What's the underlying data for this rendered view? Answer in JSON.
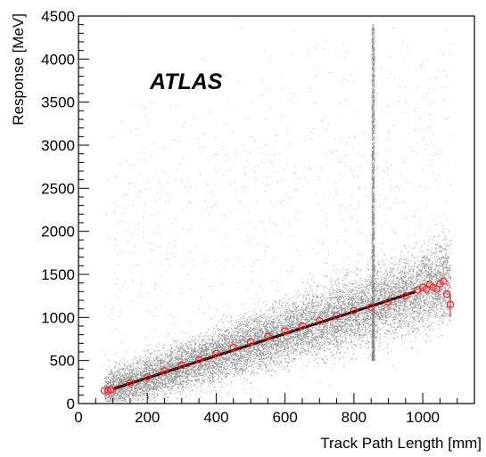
{
  "chart_data": {
    "type": "scatter",
    "title": "",
    "annotation": "ATLAS",
    "xlabel": "Track Path Length [mm]",
    "ylabel": "Response [MeV]",
    "xlim": [
      0,
      1150
    ],
    "ylim": [
      0,
      4500
    ],
    "x_ticks": [
      "0",
      "200",
      "400",
      "600",
      "800",
      "1000"
    ],
    "y_ticks": [
      "0",
      "500",
      "1000",
      "1500",
      "2000",
      "2500",
      "3000",
      "3500",
      "4000",
      "4500"
    ],
    "grid": false,
    "legend": "none",
    "colors": {
      "scatter": "#8c8c8c",
      "profile": "#ff2020",
      "fit": "#000000"
    },
    "background_scatter": {
      "description_of_density": "dense grey cloud of individual events",
      "x_range": [
        75,
        1080
      ],
      "vertical_spike_x": 855
    },
    "fit_line": {
      "x": [
        100,
        980
      ],
      "y": [
        170,
        1300
      ]
    },
    "profile_points": {
      "x": [
        75,
        85,
        95,
        150,
        200,
        250,
        300,
        350,
        400,
        450,
        500,
        550,
        600,
        650,
        700,
        750,
        800,
        850,
        900,
        950,
        985,
        1000,
        1010,
        1020,
        1030,
        1040,
        1050,
        1060,
        1070,
        1080
      ],
      "y": [
        150,
        150,
        160,
        240,
        310,
        380,
        445,
        510,
        580,
        650,
        715,
        780,
        840,
        900,
        960,
        1020,
        1080,
        1120,
        1180,
        1250,
        1320,
        1350,
        1330,
        1380,
        1350,
        1330,
        1390,
        1420,
        1270,
        1150
      ]
    }
  }
}
